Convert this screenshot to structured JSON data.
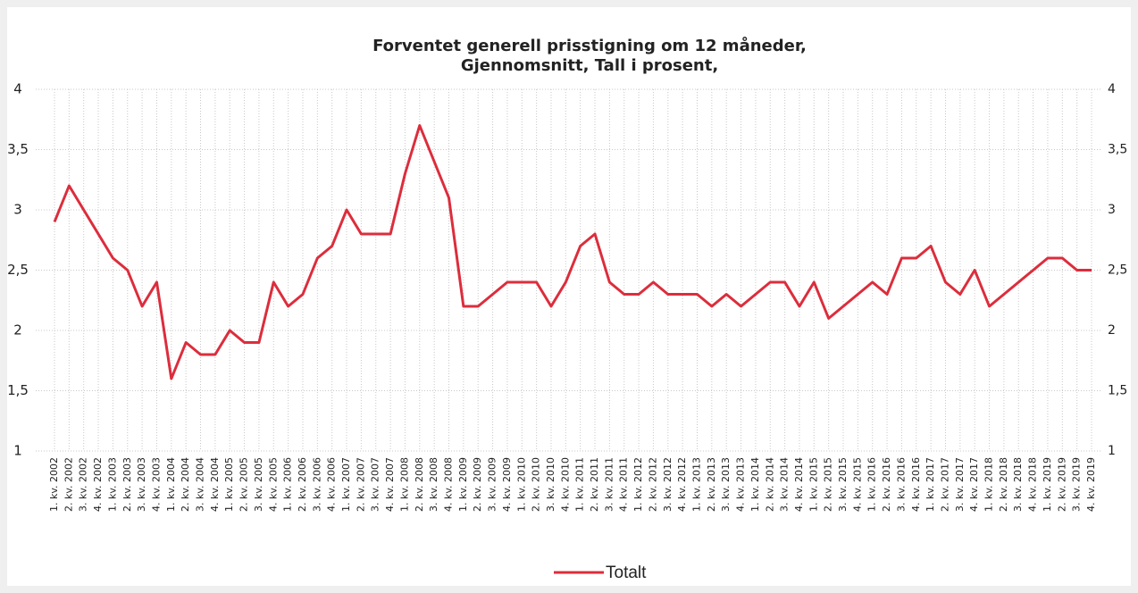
{
  "chart_data": {
    "type": "line",
    "title": [
      "Forventet generell prisstigning om 12 måneder,",
      "Gjennomsnitt, Tall i prosent,"
    ],
    "categories": [
      "1. kv. 2002",
      "2. kv. 2002",
      "3. kv. 2002",
      "4. kv. 2002",
      "1. kv. 2003",
      "2. kv. 2003",
      "3. kv. 2003",
      "4. kv. 2003",
      "1. kv. 2004",
      "2. kv. 2004",
      "3. kv. 2004",
      "4. kv. 2004",
      "1. kv. 2005",
      "2. kv. 2005",
      "3. kv. 2005",
      "4. kv. 2005",
      "1. kv. 2006",
      "2. kv. 2006",
      "3. kv. 2006",
      "4. kv. 2006",
      "1. kv. 2007",
      "2. kv. 2007",
      "3. kv. 2007",
      "4. kv. 2007",
      "1. kv. 2008",
      "2. kv. 2008",
      "3. kv. 2008",
      "4. kv. 2008",
      "1. kv. 2009",
      "2. kv. 2009",
      "3. kv. 2009",
      "4. kv. 2009",
      "1. kv. 2010",
      "2. kv. 2010",
      "3. kv. 2010",
      "4. kv. 2010",
      "1. kv. 2011",
      "2. kv. 2011",
      "3. kv. 2011",
      "4. kv. 2011",
      "1. kv. 2012",
      "2. kv. 2012",
      "3. kv. 2012",
      "4. kv. 2012",
      "1. kv. 2013",
      "2. kv. 2013",
      "3. kv. 2013",
      "4. kv. 2013",
      "1. kv. 2014",
      "2. kv. 2014",
      "3. kv. 2014",
      "4. kv. 2014",
      "1. kv. 2015",
      "2. kv. 2015",
      "3. kv. 2015",
      "4. kv. 2015",
      "1. kv. 2016",
      "2. kv. 2016",
      "3. kv. 2016",
      "4. kv. 2016",
      "1. kv. 2017",
      "2. kv. 2017",
      "3. kv. 2017",
      "4. kv. 2017",
      "1. kv. 2018",
      "2. kv. 2018",
      "3. kv. 2018",
      "4. kv. 2018",
      "1. kv. 2019",
      "2. kv. 2019",
      "3. kv. 2019",
      "4. kv. 2019"
    ],
    "series": [
      {
        "name": "Totalt",
        "color": "#dc2d3c",
        "values": [
          2.9,
          3.2,
          3.0,
          2.8,
          2.6,
          2.5,
          2.2,
          2.4,
          1.6,
          1.9,
          1.8,
          1.8,
          2.0,
          1.9,
          1.9,
          2.4,
          2.2,
          2.3,
          2.6,
          2.7,
          3.0,
          2.8,
          2.8,
          2.8,
          3.3,
          3.7,
          3.4,
          3.1,
          2.2,
          2.2,
          2.3,
          2.4,
          2.4,
          2.4,
          2.2,
          2.4,
          2.7,
          2.8,
          2.4,
          2.3,
          2.3,
          2.4,
          2.3,
          2.3,
          2.3,
          2.2,
          2.3,
          2.2,
          2.3,
          2.4,
          2.4,
          2.2,
          2.4,
          2.1,
          2.2,
          2.3,
          2.4,
          2.3,
          2.6,
          2.6,
          2.7,
          2.4,
          2.3,
          2.5,
          2.2,
          2.3,
          2.4,
          2.5,
          2.6,
          2.6,
          2.5,
          2.5
        ]
      }
    ],
    "ylim": [
      1,
      4
    ],
    "yticks": [
      1,
      {
        "value": 1.5,
        "label": "1,5"
      },
      2,
      {
        "value": 2.5,
        "label": "2,5"
      },
      3,
      {
        "value": 3.5,
        "label": "3,5"
      },
      4
    ],
    "y2lim": [
      1,
      4
    ],
    "y2ticks": [
      1,
      {
        "value": 1.5,
        "label": "1,5"
      },
      2,
      {
        "value": 2.5,
        "label": "2,5"
      },
      3,
      {
        "value": 3.5,
        "label": "3,5"
      },
      4
    ],
    "grid": true,
    "legend": "bottom"
  }
}
